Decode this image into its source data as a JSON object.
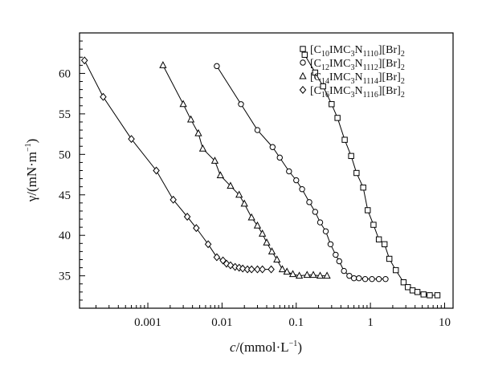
{
  "chart_data": {
    "type": "line",
    "xscale": "log",
    "xlim": [
      0.00012,
      13
    ],
    "ylim": [
      31,
      65
    ],
    "xticks": [
      0.001,
      0.01,
      0.1,
      1,
      10
    ],
    "xtick_labels": [
      "0.001",
      "0.01",
      "0.1",
      "1",
      "10"
    ],
    "yticks": [
      35,
      40,
      45,
      50,
      55,
      60
    ],
    "ytick_labels": [
      "35",
      "40",
      "45",
      "50",
      "55",
      "60"
    ],
    "xlabel": {
      "italic": "c",
      "rest": "/(mmol·L",
      "sup": "−1",
      "end": ")"
    },
    "ylabel": {
      "main": "γ/(mN·m",
      "sup": "−1",
      "end": ")"
    },
    "legend_position": "top-right",
    "series": [
      {
        "name": "[C10IMC3N1110][Br]2",
        "legend": {
          "a": "[C",
          "s1": "10",
          "b": "IMC",
          "s2": "3",
          "c": "N",
          "s3": "1110",
          "d": "][Br]",
          "s4": "2"
        },
        "marker": "square",
        "points": [
          [
            0.13,
            62.3
          ],
          [
            0.18,
            60.1
          ],
          [
            0.23,
            58.4
          ],
          [
            0.3,
            56.2
          ],
          [
            0.36,
            54.5
          ],
          [
            0.45,
            51.8
          ],
          [
            0.55,
            49.8
          ],
          [
            0.65,
            47.7
          ],
          [
            0.8,
            45.9
          ],
          [
            0.92,
            43.1
          ],
          [
            1.1,
            41.3
          ],
          [
            1.3,
            39.5
          ],
          [
            1.55,
            38.9
          ],
          [
            1.8,
            37.1
          ],
          [
            2.2,
            35.7
          ],
          [
            2.8,
            34.2
          ],
          [
            3.2,
            33.6
          ],
          [
            3.7,
            33.2
          ],
          [
            4.3,
            33.0
          ],
          [
            5.2,
            32.7
          ],
          [
            6.3,
            32.6
          ],
          [
            8.0,
            32.6
          ]
        ]
      },
      {
        "name": "[C12IMC3N1112][Br]2",
        "legend": {
          "a": "[C",
          "s1": "12",
          "b": "IMC",
          "s2": "3",
          "c": "N",
          "s3": "1112",
          "d": "][Br]",
          "s4": "2"
        },
        "marker": "circle",
        "points": [
          [
            0.0085,
            60.9
          ],
          [
            0.018,
            56.2
          ],
          [
            0.03,
            53.0
          ],
          [
            0.048,
            50.9
          ],
          [
            0.06,
            49.6
          ],
          [
            0.08,
            47.9
          ],
          [
            0.1,
            46.8
          ],
          [
            0.12,
            45.7
          ],
          [
            0.15,
            44.1
          ],
          [
            0.18,
            42.9
          ],
          [
            0.21,
            41.6
          ],
          [
            0.25,
            40.5
          ],
          [
            0.29,
            38.9
          ],
          [
            0.34,
            37.6
          ],
          [
            0.38,
            36.8
          ],
          [
            0.44,
            35.6
          ],
          [
            0.52,
            35.0
          ],
          [
            0.6,
            34.7
          ],
          [
            0.7,
            34.7
          ],
          [
            0.85,
            34.6
          ],
          [
            1.05,
            34.6
          ],
          [
            1.3,
            34.6
          ],
          [
            1.6,
            34.6
          ]
        ]
      },
      {
        "name": "[C14IMC3N1114][Br]2",
        "legend": {
          "a": "[C",
          "s1": "14",
          "b": "IMC",
          "s2": "3",
          "c": "N",
          "s3": "1114",
          "d": "][Br]",
          "s4": "2"
        },
        "marker": "triangle",
        "points": [
          [
            0.0016,
            61.0
          ],
          [
            0.003,
            56.2
          ],
          [
            0.0038,
            54.3
          ],
          [
            0.0048,
            52.6
          ],
          [
            0.0055,
            50.7
          ],
          [
            0.008,
            49.2
          ],
          [
            0.0095,
            47.4
          ],
          [
            0.013,
            46.1
          ],
          [
            0.017,
            45.0
          ],
          [
            0.02,
            43.9
          ],
          [
            0.025,
            42.2
          ],
          [
            0.03,
            41.2
          ],
          [
            0.035,
            40.2
          ],
          [
            0.04,
            39.1
          ],
          [
            0.047,
            38.0
          ],
          [
            0.055,
            37.0
          ],
          [
            0.065,
            35.8
          ],
          [
            0.075,
            35.5
          ],
          [
            0.09,
            35.2
          ],
          [
            0.11,
            35.0
          ],
          [
            0.14,
            35.1
          ],
          [
            0.17,
            35.1
          ],
          [
            0.21,
            35.0
          ],
          [
            0.26,
            35.0
          ]
        ]
      },
      {
        "name": "[C16IMC3N1116][Br]2",
        "legend": {
          "a": "[C",
          "s1": "16",
          "b": "IMC",
          "s2": "3",
          "c": "N",
          "s3": "1116",
          "d": "][Br]",
          "s4": "2"
        },
        "marker": "diamond",
        "points": [
          [
            0.00014,
            61.6
          ],
          [
            0.00025,
            57.1
          ],
          [
            0.0006,
            51.9
          ],
          [
            0.0013,
            48.0
          ],
          [
            0.0022,
            44.4
          ],
          [
            0.0034,
            42.3
          ],
          [
            0.0045,
            40.9
          ],
          [
            0.0065,
            38.9
          ],
          [
            0.0085,
            37.3
          ],
          [
            0.0103,
            36.9
          ],
          [
            0.0115,
            36.5
          ],
          [
            0.013,
            36.3
          ],
          [
            0.015,
            36.1
          ],
          [
            0.017,
            36.0
          ],
          [
            0.019,
            35.9
          ],
          [
            0.022,
            35.8
          ],
          [
            0.025,
            35.8
          ],
          [
            0.03,
            35.8
          ],
          [
            0.035,
            35.8
          ],
          [
            0.046,
            35.8
          ]
        ]
      }
    ]
  }
}
